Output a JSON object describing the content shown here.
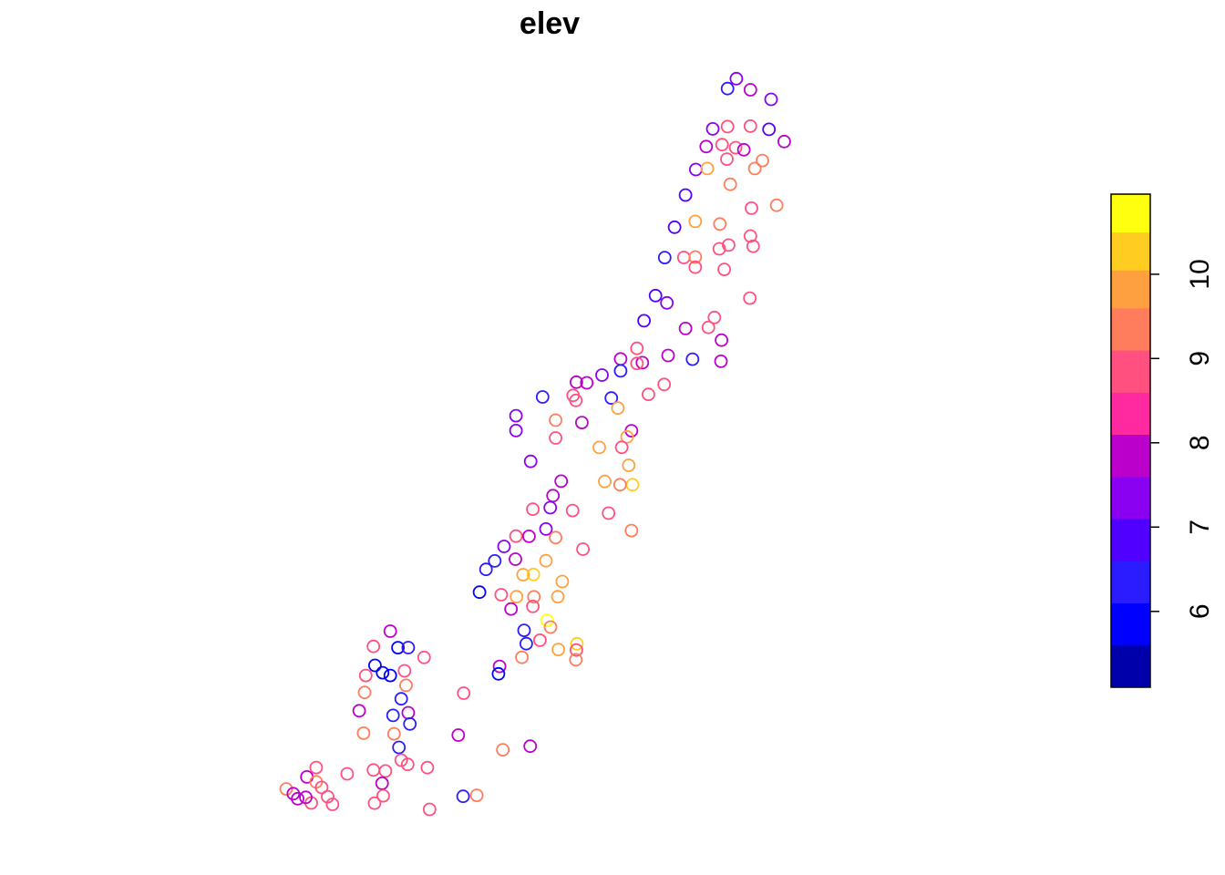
{
  "chart_data": {
    "type": "scatter",
    "title": "elev",
    "marker": "open-circle",
    "legend_placement": "right",
    "legend": {
      "type": "colorbar",
      "range": [
        5.1,
        10.95
      ],
      "ticks": [
        6,
        7,
        8,
        9,
        10
      ],
      "tick_labels": [
        "6",
        "7",
        "8",
        "9",
        "10"
      ],
      "bins": [
        {
          "from": 5.1,
          "to": 5.6,
          "color": "#0000AA"
        },
        {
          "from": 5.6,
          "to": 6.1,
          "color": "#0000FF"
        },
        {
          "from": 6.1,
          "to": 6.6,
          "color": "#2B1BFF"
        },
        {
          "from": 6.6,
          "to": 7.1,
          "color": "#5000FF"
        },
        {
          "from": 7.1,
          "to": 7.6,
          "color": "#8A00F0"
        },
        {
          "from": 7.6,
          "to": 8.1,
          "color": "#BB00CC"
        },
        {
          "from": 8.1,
          "to": 8.6,
          "color": "#FF2AA0"
        },
        {
          "from": 8.6,
          "to": 9.1,
          "color": "#FF5080"
        },
        {
          "from": 9.1,
          "to": 9.6,
          "color": "#FF7C5C"
        },
        {
          "from": 9.6,
          "to": 10.05,
          "color": "#FFA040"
        },
        {
          "from": 10.05,
          "to": 10.5,
          "color": "#FFCC22"
        },
        {
          "from": 10.5,
          "to": 10.95,
          "color": "#FFFF10"
        }
      ]
    },
    "xlim": [
      0,
      1
    ],
    "ylim": [
      0,
      1
    ],
    "points": [
      {
        "x": 0.853,
        "y": 0.9897,
        "v": 7.2
      },
      {
        "x": 0.8362,
        "y": 0.9763,
        "v": 6.3
      },
      {
        "x": 0.8796,
        "y": 0.9747,
        "v": 7.6
      },
      {
        "x": 0.9189,
        "y": 0.9617,
        "v": 7.5
      },
      {
        "x": 0.8083,
        "y": 0.9217,
        "v": 7.2
      },
      {
        "x": 0.8362,
        "y": 0.9248,
        "v": 8.6
      },
      {
        "x": 0.8796,
        "y": 0.9254,
        "v": 8.6
      },
      {
        "x": 0.9148,
        "y": 0.9211,
        "v": 6.9
      },
      {
        "x": 0.9437,
        "y": 0.9046,
        "v": 7.6
      },
      {
        "x": 0.7959,
        "y": 0.8978,
        "v": 7.6
      },
      {
        "x": 0.8259,
        "y": 0.9004,
        "v": 8.6
      },
      {
        "x": 0.8517,
        "y": 0.8963,
        "v": 8.6
      },
      {
        "x": 0.8672,
        "y": 0.8935,
        "v": 7.6
      },
      {
        "x": 0.8351,
        "y": 0.8807,
        "v": 8.6
      },
      {
        "x": 0.9024,
        "y": 0.8789,
        "v": 9.4
      },
      {
        "x": 0.8879,
        "y": 0.868,
        "v": 9.3
      },
      {
        "x": 0.7762,
        "y": 0.8667,
        "v": 7.2
      },
      {
        "x": 0.798,
        "y": 0.868,
        "v": 9.8
      },
      {
        "x": 0.8414,
        "y": 0.8467,
        "v": 9.3
      },
      {
        "x": 0.7566,
        "y": 0.8321,
        "v": 6.9
      },
      {
        "x": 0.9293,
        "y": 0.8183,
        "v": 9.4
      },
      {
        "x": 0.8817,
        "y": 0.8143,
        "v": 9.0
      },
      {
        "x": 0.7752,
        "y": 0.7964,
        "v": 9.8
      },
      {
        "x": 0.8217,
        "y": 0.7929,
        "v": 9.4
      },
      {
        "x": 0.7359,
        "y": 0.7885,
        "v": 6.8
      },
      {
        "x": 0.8797,
        "y": 0.7766,
        "v": 8.6
      },
      {
        "x": 0.8207,
        "y": 0.7593,
        "v": 9.0
      },
      {
        "x": 0.8383,
        "y": 0.7643,
        "v": 8.6
      },
      {
        "x": 0.8848,
        "y": 0.7627,
        "v": 8.6
      },
      {
        "x": 0.7173,
        "y": 0.7474,
        "v": 6.5
      },
      {
        "x": 0.7535,
        "y": 0.7475,
        "v": 9.0
      },
      {
        "x": 0.7752,
        "y": 0.7481,
        "v": 9.4
      },
      {
        "x": 0.7752,
        "y": 0.7343,
        "v": 9.0
      },
      {
        "x": 0.83,
        "y": 0.7313,
        "v": 9.0
      },
      {
        "x": 0.8786,
        "y": 0.6925,
        "v": 9.0
      },
      {
        "x": 0.6998,
        "y": 0.6959,
        "v": 6.8
      },
      {
        "x": 0.7215,
        "y": 0.6861,
        "v": 7.2
      },
      {
        "x": 0.6781,
        "y": 0.6619,
        "v": 6.8
      },
      {
        "x": 0.8114,
        "y": 0.6663,
        "v": 9.0
      },
      {
        "x": 0.7566,
        "y": 0.6513,
        "v": 7.6
      },
      {
        "x": 0.8,
        "y": 0.6529,
        "v": 8.6
      },
      {
        "x": 0.8248,
        "y": 0.6356,
        "v": 7.6
      },
      {
        "x": 0.6646,
        "y": 0.6245,
        "v": 8.6
      },
      {
        "x": 0.7236,
        "y": 0.6148,
        "v": 7.6
      },
      {
        "x": 0.77,
        "y": 0.6098,
        "v": 6.5
      },
      {
        "x": 0.6337,
        "y": 0.6101,
        "v": 7.6
      },
      {
        "x": 0.675,
        "y": 0.6051,
        "v": 7.6
      },
      {
        "x": 0.8238,
        "y": 0.6069,
        "v": 7.6
      },
      {
        "x": 0.6647,
        "y": 0.6039,
        "v": 8.6
      },
      {
        "x": 0.5985,
        "y": 0.5883,
        "v": 7.2
      },
      {
        "x": 0.6337,
        "y": 0.5939,
        "v": 6.5
      },
      {
        "x": 0.7163,
        "y": 0.5756,
        "v": 8.6
      },
      {
        "x": 0.5499,
        "y": 0.5786,
        "v": 7.6
      },
      {
        "x": 0.5696,
        "y": 0.5778,
        "v": 7.6
      },
      {
        "x": 0.6864,
        "y": 0.5621,
        "v": 9.0
      },
      {
        "x": 0.4859,
        "y": 0.5586,
        "v": 6.5
      },
      {
        "x": 0.5437,
        "y": 0.5608,
        "v": 8.6
      },
      {
        "x": 0.5489,
        "y": 0.5539,
        "v": 8.6
      },
      {
        "x": 0.6161,
        "y": 0.5572,
        "v": 6.3
      },
      {
        "x": 0.6285,
        "y": 0.5436,
        "v": 9.8
      },
      {
        "x": 0.4354,
        "y": 0.5332,
        "v": 7.2
      },
      {
        "x": 0.5106,
        "y": 0.5271,
        "v": 9.4
      },
      {
        "x": 0.5602,
        "y": 0.524,
        "v": 7.6
      },
      {
        "x": 0.6543,
        "y": 0.5129,
        "v": 7.6
      },
      {
        "x": 0.646,
        "y": 0.5046,
        "v": 9.8
      },
      {
        "x": 0.4354,
        "y": 0.5131,
        "v": 7.2
      },
      {
        "x": 0.5106,
        "y": 0.5031,
        "v": 8.6
      },
      {
        "x": 0.5933,
        "y": 0.4902,
        "v": 9.8
      },
      {
        "x": 0.6357,
        "y": 0.4904,
        "v": 8.6
      },
      {
        "x": 0.4632,
        "y": 0.4714,
        "v": 7.2
      },
      {
        "x": 0.649,
        "y": 0.4661,
        "v": 9.8
      },
      {
        "x": 0.521,
        "y": 0.4446,
        "v": 7.6
      },
      {
        "x": 0.6037,
        "y": 0.4442,
        "v": 9.8
      },
      {
        "x": 0.6563,
        "y": 0.4398,
        "v": 10.3
      },
      {
        "x": 0.6326,
        "y": 0.4398,
        "v": 9.4
      },
      {
        "x": 0.5055,
        "y": 0.425,
        "v": 7.6
      },
      {
        "x": 0.5003,
        "y": 0.4086,
        "v": 7.2
      },
      {
        "x": 0.4674,
        "y": 0.4066,
        "v": 8.6
      },
      {
        "x": 0.5426,
        "y": 0.4048,
        "v": 8.6
      },
      {
        "x": 0.6109,
        "y": 0.4012,
        "v": 8.6
      },
      {
        "x": 0.6543,
        "y": 0.3776,
        "v": 9.4
      },
      {
        "x": 0.4922,
        "y": 0.3797,
        "v": 7.2
      },
      {
        "x": 0.4354,
        "y": 0.3701,
        "v": 8.6
      },
      {
        "x": 0.4601,
        "y": 0.3699,
        "v": 7.6
      },
      {
        "x": 0.5106,
        "y": 0.3682,
        "v": 9.4
      },
      {
        "x": 0.4127,
        "y": 0.3562,
        "v": 7.2
      },
      {
        "x": 0.5623,
        "y": 0.3525,
        "v": 8.6
      },
      {
        "x": 0.3952,
        "y": 0.3366,
        "v": 6.5
      },
      {
        "x": 0.4343,
        "y": 0.3389,
        "v": 7.6
      },
      {
        "x": 0.4922,
        "y": 0.3368,
        "v": 9.8
      },
      {
        "x": 0.3786,
        "y": 0.3251,
        "v": 6.3
      },
      {
        "x": 0.4488,
        "y": 0.3179,
        "v": 9.8
      },
      {
        "x": 0.4684,
        "y": 0.3181,
        "v": 10.3
      },
      {
        "x": 0.5231,
        "y": 0.3086,
        "v": 9.8
      },
      {
        "x": 0.3663,
        "y": 0.2942,
        "v": 6.0
      },
      {
        "x": 0.4364,
        "y": 0.288,
        "v": 9.8
      },
      {
        "x": 0.4075,
        "y": 0.2908,
        "v": 8.6
      },
      {
        "x": 0.4695,
        "y": 0.2879,
        "v": 9.4
      },
      {
        "x": 0.5147,
        "y": 0.288,
        "v": 9.8
      },
      {
        "x": 0.4674,
        "y": 0.2749,
        "v": 8.6
      },
      {
        "x": 0.426,
        "y": 0.2713,
        "v": 7.6
      },
      {
        "x": 0.4943,
        "y": 0.256,
        "v": 10.5
      },
      {
        "x": 0.4508,
        "y": 0.2425,
        "v": 6.3
      },
      {
        "x": 0.5008,
        "y": 0.2469,
        "v": 9.4
      },
      {
        "x": 0.1972,
        "y": 0.2413,
        "v": 7.6
      },
      {
        "x": 0.455,
        "y": 0.2245,
        "v": 6.3
      },
      {
        "x": 0.4808,
        "y": 0.2291,
        "v": 8.6
      },
      {
        "x": 0.5509,
        "y": 0.2243,
        "v": 10.3
      },
      {
        "x": 0.5158,
        "y": 0.2166,
        "v": 9.8
      },
      {
        "x": 0.1652,
        "y": 0.2207,
        "v": 8.6
      },
      {
        "x": 0.2117,
        "y": 0.219,
        "v": 6.0
      },
      {
        "x": 0.2313,
        "y": 0.2191,
        "v": 6.3
      },
      {
        "x": 0.5499,
        "y": 0.2158,
        "v": 8.6
      },
      {
        "x": 0.2613,
        "y": 0.2058,
        "v": 8.6
      },
      {
        "x": 0.4467,
        "y": 0.2059,
        "v": 9.4
      },
      {
        "x": 0.5489,
        "y": 0.2027,
        "v": 9.4
      },
      {
        "x": 0.1683,
        "y": 0.195,
        "v": 6.0
      },
      {
        "x": 0.4044,
        "y": 0.1937,
        "v": 7.6
      },
      {
        "x": 0.1828,
        "y": 0.185,
        "v": 6.0
      },
      {
        "x": 0.2241,
        "y": 0.1877,
        "v": 8.6
      },
      {
        "x": 0.1507,
        "y": 0.1813,
        "v": 8.6
      },
      {
        "x": 0.1972,
        "y": 0.1813,
        "v": 6.0
      },
      {
        "x": 0.4023,
        "y": 0.1836,
        "v": 6.0
      },
      {
        "x": 0.2272,
        "y": 0.168,
        "v": 9.4
      },
      {
        "x": 0.1486,
        "y": 0.1584,
        "v": 9.4
      },
      {
        "x": 0.2179,
        "y": 0.1498,
        "v": 6.3
      },
      {
        "x": 0.3363,
        "y": 0.1574,
        "v": 8.6
      },
      {
        "x": 0.1383,
        "y": 0.1336,
        "v": 7.6
      },
      {
        "x": 0.2313,
        "y": 0.1309,
        "v": 7.6
      },
      {
        "x": 0.2024,
        "y": 0.1273,
        "v": 6.3
      },
      {
        "x": 0.2344,
        "y": 0.1157,
        "v": 6.3
      },
      {
        "x": 0.1466,
        "y": 0.1032,
        "v": 9.4
      },
      {
        "x": 0.2044,
        "y": 0.1023,
        "v": 9.4
      },
      {
        "x": 0.326,
        "y": 0.1006,
        "v": 7.6
      },
      {
        "x": 0.2137,
        "y": 0.0839,
        "v": 6.5
      },
      {
        "x": 0.4106,
        "y": 0.0808,
        "v": 9.4
      },
      {
        "x": 0.4623,
        "y": 0.0855,
        "v": 7.6
      },
      {
        "x": 0.2179,
        "y": 0.0667,
        "v": 8.6
      },
      {
        "x": 0.2303,
        "y": 0.0609,
        "v": 9.0
      },
      {
        "x": 0.2675,
        "y": 0.0565,
        "v": 8.6
      },
      {
        "x": 0.188,
        "y": 0.052,
        "v": 8.6
      },
      {
        "x": 0.1652,
        "y": 0.0533,
        "v": 9.0
      },
      {
        "x": 0.1156,
        "y": 0.0482,
        "v": 8.6
      },
      {
        "x": 0.1817,
        "y": 0.0353,
        "v": 7.6
      },
      {
        "x": 0.1838,
        "y": 0.0184,
        "v": 8.6
      },
      {
        "x": 0.3353,
        "y": 0.0176,
        "v": 6.5
      },
      {
        "x": 0.3611,
        "y": 0.019,
        "v": 9.4
      },
      {
        "x": 0.0,
        "y": 0.0277,
        "v": 9.4
      },
      {
        "x": 0.0878,
        "y": 0.0068,
        "v": 8.6
      },
      {
        "x": 0.1673,
        "y": 0.0084,
        "v": 8.6
      },
      {
        "x": 0.2716,
        "y": 0.0,
        "v": 8.6
      },
      {
        "x": 0.0392,
        "y": 0.044,
        "v": 7.6
      },
      {
        "x": 0.0568,
        "y": 0.0567,
        "v": 8.6
      },
      {
        "x": 0.0568,
        "y": 0.0373,
        "v": 9.4
      },
      {
        "x": 0.0671,
        "y": 0.0298,
        "v": 9.0
      },
      {
        "x": 0.0785,
        "y": 0.0172,
        "v": 8.6
      },
      {
        "x": 0.0475,
        "y": 0.0087,
        "v": 8.6
      },
      {
        "x": 0.0372,
        "y": 0.0163,
        "v": 7.6
      },
      {
        "x": 0.0217,
        "y": 0.0145,
        "v": 7.6
      },
      {
        "x": 0.0134,
        "y": 0.0212,
        "v": 7.6
      }
    ]
  }
}
